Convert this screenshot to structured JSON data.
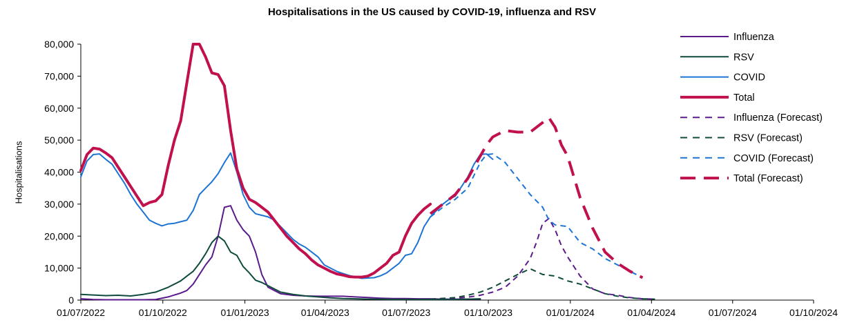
{
  "chart_data": {
    "type": "line",
    "title": "Hospitalisations in the US caused by COVID-19, influenza and RSV",
    "xlabel": "",
    "ylabel": "Hospitalisations",
    "ylim": [
      0,
      80000
    ],
    "xlim": [
      "01/07/2022",
      "01/10/2024"
    ],
    "yticks": [
      "0",
      "10,000",
      "20,000",
      "30,000",
      "40,000",
      "50,000",
      "60,000",
      "70,000",
      "80,000"
    ],
    "xticks": [
      "01/07/2022",
      "01/10/2022",
      "01/01/2023",
      "01/04/2023",
      "01/07/2023",
      "01/10/2023",
      "01/01/2024",
      "01/04/2024",
      "01/07/2024",
      "01/10/2024"
    ],
    "legend_position": "right",
    "x_units": "weeks since 01/07/2022",
    "series": [
      {
        "name": "Influenza",
        "color": "#5b1a8c",
        "style": "solid",
        "width": 2,
        "x": [
          0,
          2,
          4,
          6,
          8,
          10,
          12,
          14,
          15,
          16,
          17,
          18,
          19,
          20,
          21,
          22,
          23,
          24,
          25,
          26,
          27,
          28,
          29,
          30,
          32,
          34,
          36,
          38,
          40,
          42,
          44,
          46,
          48,
          50,
          52,
          54,
          56,
          58,
          60,
          62,
          64
        ],
        "y": [
          400,
          200,
          100,
          100,
          100,
          100,
          200,
          1000,
          1600,
          2200,
          3000,
          5000,
          8000,
          11000,
          13500,
          20000,
          29000,
          29500,
          25000,
          22000,
          20000,
          15000,
          8000,
          4000,
          2000,
          1500,
          1300,
          1200,
          1200,
          1200,
          1000,
          800,
          600,
          500,
          500,
          400,
          400,
          300,
          300,
          300,
          300
        ]
      },
      {
        "name": "RSV",
        "color": "#0f4a3c",
        "style": "solid",
        "width": 2,
        "x": [
          0,
          2,
          4,
          6,
          8,
          10,
          12,
          14,
          15,
          16,
          17,
          18,
          19,
          20,
          21,
          22,
          23,
          24,
          25,
          26,
          27,
          28,
          29,
          30,
          32,
          34,
          36,
          38,
          40,
          42,
          44,
          46,
          48,
          50,
          52,
          54,
          56,
          58,
          60,
          62,
          64
        ],
        "y": [
          1800,
          1600,
          1400,
          1500,
          1300,
          1800,
          2500,
          4000,
          5000,
          6000,
          7500,
          9000,
          11500,
          14500,
          18000,
          20000,
          18500,
          15000,
          14000,
          10500,
          8500,
          6200,
          5500,
          4500,
          2500,
          1800,
          1300,
          1000,
          700,
          500,
          400,
          300,
          250,
          200,
          200,
          200,
          200,
          200,
          200,
          300,
          400
        ]
      },
      {
        "name": "COVID",
        "color": "#1c74d4",
        "style": "solid",
        "width": 2,
        "x": [
          0,
          1,
          2,
          3,
          4,
          5,
          6,
          7,
          8,
          9,
          10,
          11,
          12,
          13,
          14,
          15,
          16,
          17,
          18,
          19,
          20,
          21,
          22,
          23,
          24,
          25,
          26,
          27,
          28,
          29,
          30,
          31,
          32,
          33,
          34,
          35,
          36,
          37,
          38,
          39,
          40,
          41,
          42,
          43,
          44,
          45,
          46,
          47,
          48,
          49,
          50,
          51,
          52,
          53,
          54,
          55,
          56,
          57,
          58,
          59,
          60,
          61,
          62,
          63,
          64,
          65,
          66
        ],
        "y": [
          38500,
          43500,
          45500,
          45700,
          44000,
          42500,
          39500,
          36500,
          33000,
          30000,
          27500,
          25000,
          24000,
          23200,
          23800,
          24000,
          24500,
          25000,
          28000,
          33000,
          35000,
          37000,
          39500,
          43000,
          46000,
          40000,
          33000,
          29000,
          27000,
          26500,
          26000,
          25000,
          23000,
          21000,
          19000,
          17500,
          16500,
          15000,
          13500,
          11000,
          10000,
          9000,
          8300,
          7700,
          7200,
          6800,
          6900,
          7000,
          7600,
          8500,
          10000,
          11500,
          14000,
          14500,
          18000,
          23000,
          26000,
          28000,
          30000,
          31500,
          32500,
          35500,
          38500,
          42500,
          45500,
          45700,
          44000
        ]
      },
      {
        "name": "Total",
        "color": "#c0104e",
        "style": "solid",
        "width": 4,
        "x": [
          0,
          1,
          2,
          3,
          4,
          5,
          6,
          7,
          8,
          9,
          10,
          11,
          12,
          13,
          14,
          15,
          16,
          17,
          18,
          19,
          20,
          21,
          22,
          23,
          24,
          25,
          26,
          27,
          28,
          29,
          30,
          31,
          32,
          33,
          34,
          35,
          36,
          37,
          38,
          39,
          40,
          41,
          42,
          43,
          44,
          45,
          46,
          47,
          48,
          49,
          50,
          51,
          52,
          53,
          54,
          55,
          56
        ],
        "y": [
          40500,
          45500,
          47500,
          47200,
          46000,
          44500,
          41500,
          38500,
          35500,
          32500,
          29500,
          30500,
          31000,
          33000,
          42000,
          50000,
          56000,
          68000,
          80000,
          80000,
          76000,
          71000,
          70500,
          67000,
          53000,
          41000,
          35000,
          31500,
          30500,
          29000,
          27500,
          25000,
          22500,
          20000,
          18000,
          16000,
          14500,
          12500,
          11000,
          10000,
          9000,
          8200,
          7800,
          7300,
          7200,
          7200,
          7500,
          8500,
          10000,
          11500,
          14000,
          15000,
          20000,
          24000,
          26500,
          28500,
          30000
        ]
      },
      {
        "name": "Influenza (Forecast)",
        "color": "#5b1a8c",
        "style": "dashed",
        "width": 2,
        "x": [
          56,
          60,
          62,
          64,
          66,
          68,
          70,
          72,
          73,
          74,
          75,
          76,
          77,
          78,
          80,
          82,
          84,
          86,
          88,
          90,
          92
        ],
        "y": [
          300,
          600,
          900,
          1500,
          2500,
          4000,
          7500,
          13000,
          18000,
          24000,
          25500,
          22000,
          17000,
          13500,
          7500,
          3500,
          2000,
          1500,
          800,
          400,
          300
        ]
      },
      {
        "name": "RSV (Forecast)",
        "color": "#0f4a3c",
        "style": "dashed",
        "width": 2,
        "x": [
          56,
          60,
          62,
          64,
          66,
          68,
          70,
          72,
          74,
          76,
          78,
          80,
          82,
          84,
          86,
          88,
          90,
          92
        ],
        "y": [
          300,
          800,
          1500,
          2500,
          4000,
          6000,
          8000,
          9800,
          8000,
          7500,
          6000,
          5000,
          3500,
          2000,
          1200,
          700,
          400,
          300
        ]
      },
      {
        "name": "COVID (Forecast)",
        "color": "#1c74d4",
        "style": "dashed",
        "width": 2,
        "x": [
          56,
          58,
          60,
          62,
          64,
          65,
          66,
          68,
          70,
          72,
          74,
          75,
          76,
          78,
          80,
          82,
          84,
          86,
          88,
          90
        ],
        "y": [
          26000,
          29000,
          31500,
          35000,
          43000,
          45500,
          45700,
          43000,
          38000,
          33000,
          29000,
          25000,
          23500,
          23000,
          18000,
          16000,
          13000,
          11000,
          9000,
          7000
        ]
      },
      {
        "name": "Total (Forecast)",
        "color": "#c0104e",
        "style": "dashed",
        "width": 4,
        "x": [
          56,
          58,
          60,
          62,
          64,
          65,
          66,
          68,
          70,
          72,
          74,
          75,
          76,
          77,
          78,
          80,
          82,
          84,
          86,
          88,
          90
        ],
        "y": [
          27000,
          30000,
          33000,
          38000,
          45000,
          48500,
          51000,
          53000,
          52500,
          52500,
          55500,
          57000,
          54000,
          48500,
          45000,
          32000,
          22500,
          15000,
          11500,
          9000,
          7000
        ]
      }
    ]
  }
}
